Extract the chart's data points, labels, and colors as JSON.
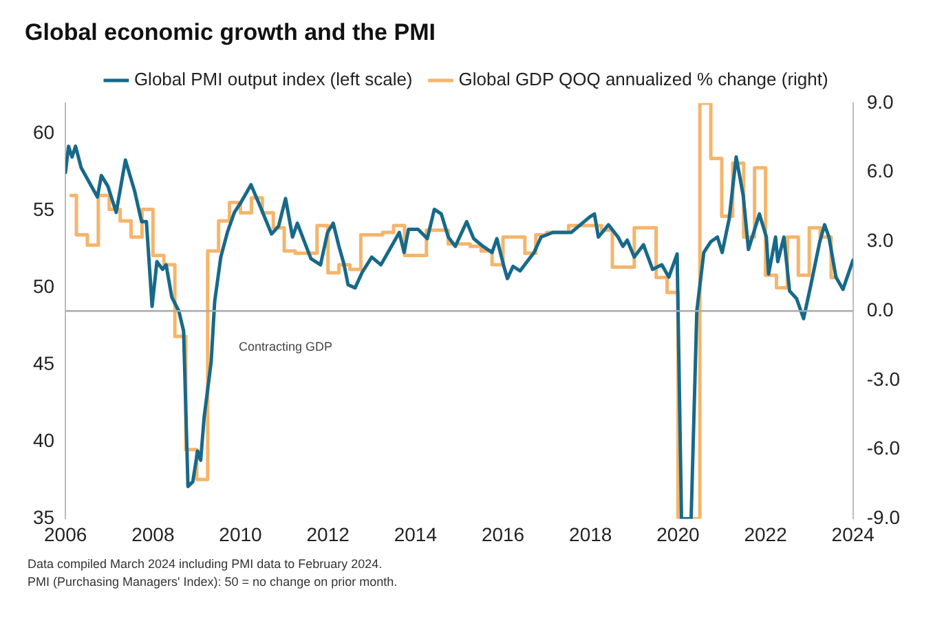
{
  "chart_data": {
    "type": "line",
    "title": "Global economic growth and the PMI",
    "xlim": [
      2006,
      2024
    ],
    "xticks": [
      2006,
      2008,
      2010,
      2012,
      2014,
      2016,
      2018,
      2020,
      2022,
      2024
    ],
    "ylim": [
      35,
      62
    ],
    "yticks": [
      35,
      40,
      45,
      50,
      55,
      60
    ],
    "y2lim": [
      -9,
      9
    ],
    "y2ticks": [
      {
        "value": -9,
        "label": "-9.0"
      },
      {
        "value": -6,
        "label": "-6.0"
      },
      {
        "value": -3,
        "label": "-3.0"
      },
      {
        "value": 0,
        "label": "0.0"
      },
      {
        "value": 3,
        "label": "3.0"
      },
      {
        "value": 6,
        "label": "6.0"
      },
      {
        "value": 9,
        "label": "9.0"
      }
    ],
    "grid": false,
    "legend": "top",
    "marker": "none",
    "ref_lines": [
      {
        "axis": "y2",
        "value": 0,
        "label": "Contracting GDP",
        "color": "#aaaaaa"
      }
    ],
    "annotations": [
      "Data compiled March 2024 including PMI data to February 2024.",
      "PMI (Purchasing Managers' Index): 50 = no change on prior month."
    ],
    "series": [
      {
        "name": "Global PMI output index (left scale)",
        "type": "line",
        "color": "#17698a",
        "x": [
          2006.0,
          2006.07,
          2006.15,
          2006.23,
          2006.36,
          2006.73,
          2006.82,
          2006.97,
          2007.16,
          2007.37,
          2007.58,
          2007.74,
          2007.85,
          2007.98,
          2008.09,
          2008.22,
          2008.3,
          2008.43,
          2008.59,
          2008.7,
          2008.8,
          2008.91,
          2009.02,
          2009.09,
          2009.17,
          2009.33,
          2009.41,
          2009.55,
          2009.7,
          2009.86,
          2010.02,
          2010.24,
          2010.45,
          2010.71,
          2010.87,
          2011.03,
          2011.19,
          2011.3,
          2011.46,
          2011.61,
          2011.83,
          2011.99,
          2012.12,
          2012.25,
          2012.36,
          2012.46,
          2012.62,
          2012.78,
          2013.0,
          2013.21,
          2013.47,
          2013.63,
          2013.74,
          2013.84,
          2014.06,
          2014.27,
          2014.43,
          2014.59,
          2014.75,
          2014.91,
          2015.17,
          2015.33,
          2015.54,
          2015.75,
          2015.86,
          2016.02,
          2016.1,
          2016.23,
          2016.39,
          2016.55,
          2016.71,
          2016.87,
          2017.14,
          2017.56,
          2017.98,
          2018.09,
          2018.18,
          2018.41,
          2018.63,
          2018.74,
          2018.84,
          2019.0,
          2019.21,
          2019.42,
          2019.63,
          2019.79,
          2019.98,
          2020.08,
          2020.3,
          2020.43,
          2020.59,
          2020.75,
          2020.9,
          2021.01,
          2021.17,
          2021.33,
          2021.49,
          2021.61,
          2021.86,
          2022.02,
          2022.07,
          2022.23,
          2022.28,
          2022.42,
          2022.55,
          2022.71,
          2022.87,
          2023.03,
          2023.24,
          2023.35,
          2023.45,
          2023.61,
          2023.77,
          2024.0
        ],
        "values": [
          57.5,
          59.2,
          58.5,
          59.2,
          57.8,
          55.9,
          57.3,
          56.6,
          54.9,
          58.3,
          56.3,
          54.3,
          54.3,
          48.8,
          51.7,
          51.2,
          51.5,
          49.4,
          48.5,
          47.2,
          37.1,
          37.4,
          39.4,
          38.8,
          41.6,
          45.2,
          49.1,
          52.0,
          53.6,
          54.9,
          55.6,
          56.7,
          55.3,
          53.5,
          54.0,
          55.8,
          53.3,
          54.2,
          53.0,
          51.9,
          51.5,
          53.6,
          54.2,
          52.7,
          51.6,
          50.2,
          50.0,
          51.0,
          52.0,
          51.5,
          52.8,
          53.6,
          52.3,
          53.8,
          53.8,
          53.2,
          55.1,
          54.8,
          53.3,
          52.7,
          54.3,
          53.2,
          52.7,
          52.3,
          53.2,
          51.4,
          50.6,
          51.4,
          51.1,
          51.7,
          52.3,
          53.3,
          53.6,
          53.6,
          54.6,
          54.8,
          53.3,
          54.1,
          53.3,
          52.7,
          53.1,
          52.0,
          52.8,
          51.2,
          51.5,
          50.7,
          52.2,
          35,
          35,
          48.5,
          52.3,
          53.0,
          53.3,
          52.3,
          54.5,
          58.5,
          56.0,
          52.5,
          54.8,
          53.3,
          50.9,
          53.3,
          51.7,
          53.3,
          49.8,
          49.3,
          48.0,
          50.1,
          53.0,
          54.1,
          53.3,
          50.7,
          49.9,
          51.8
        ]
      },
      {
        "name": "Global GDP QOQ annualized % change (right)",
        "type": "step",
        "axis": "y2",
        "color": "#f5b56a",
        "x": [
          2006.125,
          2006.375,
          2006.625,
          2006.875,
          2007.125,
          2007.375,
          2007.625,
          2007.875,
          2008.125,
          2008.375,
          2008.625,
          2008.875,
          2009.125,
          2009.375,
          2009.625,
          2009.875,
          2010.125,
          2010.375,
          2010.625,
          2010.875,
          2011.125,
          2011.375,
          2011.625,
          2011.875,
          2012.125,
          2012.375,
          2012.625,
          2012.875,
          2013.125,
          2013.375,
          2013.625,
          2013.875,
          2014.125,
          2014.375,
          2014.625,
          2014.875,
          2015.125,
          2015.375,
          2015.625,
          2015.875,
          2016.125,
          2016.375,
          2016.625,
          2016.875,
          2017.125,
          2017.375,
          2017.625,
          2017.875,
          2018.125,
          2018.375,
          2018.625,
          2018.875,
          2019.125,
          2019.375,
          2019.625,
          2019.875,
          2020.125,
          2020.375,
          2020.625,
          2020.875,
          2021.125,
          2021.375,
          2021.625,
          2021.875,
          2022.125,
          2022.375,
          2022.625,
          2022.875,
          2023.125,
          2023.375,
          2023.625
        ],
        "values": [
          5.0,
          3.3,
          2.85,
          5.0,
          4.4,
          3.9,
          3.2,
          4.4,
          2.4,
          2.0,
          -1.1,
          -6.0,
          -7.3,
          2.6,
          3.9,
          4.7,
          4.25,
          4.9,
          4.25,
          3.6,
          2.6,
          2.5,
          2.5,
          3.7,
          1.65,
          2.0,
          1.8,
          3.3,
          3.3,
          3.4,
          3.7,
          2.4,
          2.4,
          3.5,
          3.5,
          2.9,
          2.9,
          2.8,
          2.6,
          2.0,
          3.2,
          3.2,
          2.5,
          3.3,
          3.4,
          3.4,
          3.7,
          3.7,
          3.7,
          3.5,
          1.9,
          1.9,
          3.6,
          3.6,
          1.45,
          0.8,
          -9,
          -9,
          9,
          6.6,
          4.1,
          6.4,
          3.2,
          6.2,
          1.55,
          1.0,
          3.2,
          1.55,
          3.6,
          3.2,
          1.45
        ]
      }
    ]
  }
}
